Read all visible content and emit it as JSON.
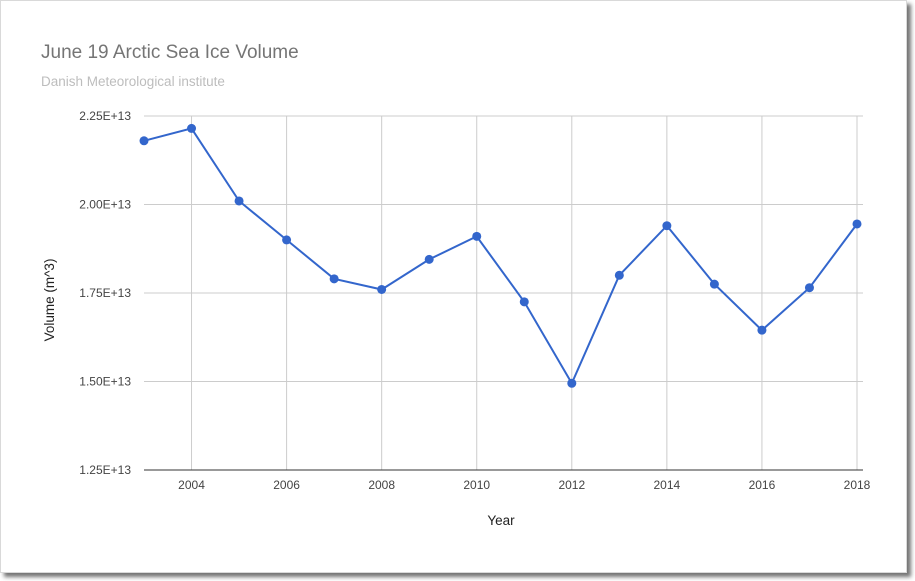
{
  "chart_data": {
    "type": "line",
    "title": "June 19 Arctic Sea Ice Volume",
    "subtitle": "Danish Meteorological institute",
    "xlabel": "Year",
    "ylabel": "Volume (m^3)",
    "xlim": [
      2003,
      2018
    ],
    "ylim": [
      12500000000000.0,
      22500000000000.0
    ],
    "x_ticks": [
      2004,
      2006,
      2008,
      2010,
      2012,
      2014,
      2016,
      2018
    ],
    "y_ticks": [
      {
        "value": 12500000000000.0,
        "label": "1.25E+13"
      },
      {
        "value": 15000000000000.0,
        "label": "1.50E+13"
      },
      {
        "value": 17500000000000.0,
        "label": "1.75E+13"
      },
      {
        "value": 20000000000000.0,
        "label": "2.00E+13"
      },
      {
        "value": 22500000000000.0,
        "label": "2.25E+13"
      }
    ],
    "grid": true,
    "color": "#3366cc",
    "series": [
      {
        "x": [
          2003,
          2004,
          2005,
          2006,
          2007,
          2008,
          2009,
          2010,
          2011,
          2012,
          2013,
          2014,
          2015,
          2016,
          2017,
          2018
        ],
        "values": [
          21800000000000.0,
          22150000000000.0,
          20100000000000.0,
          19000000000000.0,
          17900000000000.0,
          17600000000000.0,
          18450000000000.0,
          19100000000000.0,
          17250000000000.0,
          14950000000000.0,
          18000000000000.0,
          19400000000000.0,
          17750000000000.0,
          16450000000000.0,
          17650000000000.0,
          19450000000000.0
        ]
      }
    ]
  }
}
